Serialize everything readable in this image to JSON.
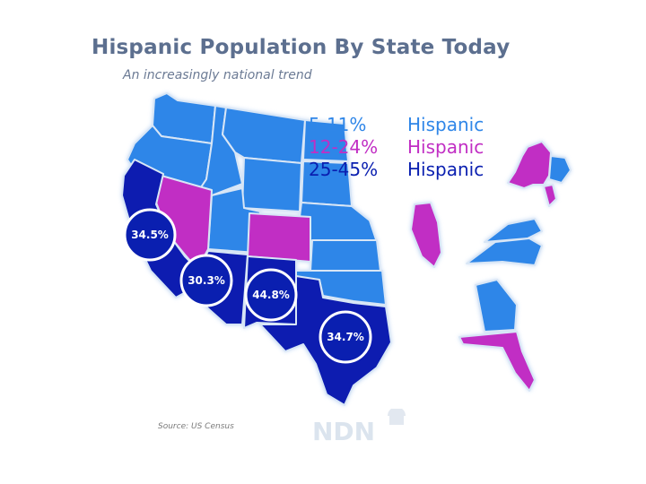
{
  "title": "Hispanic Population By State Today",
  "subtitle": "An increasingly national trend",
  "colors": {
    "tier1": "#2f86e8",
    "tier2": "#c12ec4",
    "tier3": "#0a1fb0",
    "border": "#d8e6f6",
    "title": "#5c6f8f"
  },
  "legend": [
    {
      "range": "5-11%",
      "label": "Hispanic",
      "tier": "5-11%",
      "color": "#2f86e8"
    },
    {
      "range": "12-24%",
      "label": "Hispanic",
      "tier": "12-24%",
      "color": "#c12ec4"
    },
    {
      "range": "25-45%",
      "label": "Hispanic",
      "tier": "25-45%",
      "color": "#0a1fb0"
    }
  ],
  "badges": [
    {
      "value": "34.5%"
    },
    {
      "value": "30.3%"
    },
    {
      "value": "44.8%"
    },
    {
      "value": "34.7%"
    }
  ],
  "source": "Source: US Census",
  "logo_text": "NDN"
}
